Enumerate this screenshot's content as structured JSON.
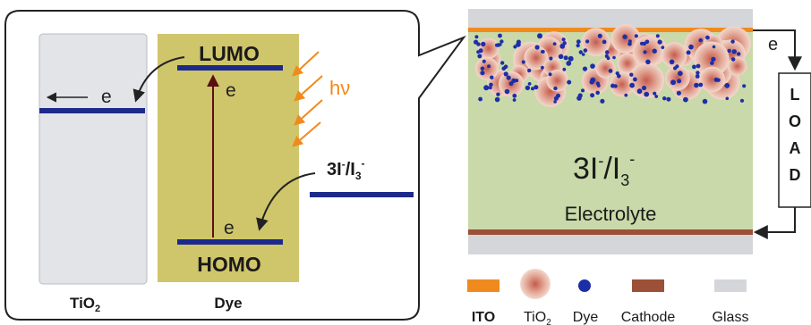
{
  "energy_diagram": {
    "lumo_label": "LUMO",
    "homo_label": "HOMO",
    "electron_label": "e",
    "light_label": "hν",
    "redox_main": "3I",
    "redox_sup1": "-",
    "redox_mid": "/I",
    "redox_sub": "3",
    "redox_sup2": "-",
    "tio2_main": "TiO",
    "tio2_sub": "2",
    "dye_label": "Dye"
  },
  "cell": {
    "redox_main": "3I",
    "redox_sup1": "-",
    "redox_mid": "/I",
    "redox_sub": "3",
    "redox_sup2": "-",
    "electrolyte_label": "Electrolyte",
    "electron_label": "e",
    "load_letters": [
      "L",
      "O",
      "A",
      "D"
    ]
  },
  "legend": {
    "ito": "ITO",
    "tio2_main": "TiO",
    "tio2_sub": "2",
    "dye": "Dye",
    "cathode": "Cathode",
    "glass": "Glass"
  },
  "colors": {
    "tio2_panel": "#e3e4e8",
    "dye_panel": "#cfc56b",
    "level_line": "#1c2a8c",
    "light_arrows": "#f08a1c",
    "electrolyte": "#c9d9a9",
    "glass": "#d5d6da",
    "ito": "#f18a1e",
    "cathode": "#9c5038",
    "dye_dot": "#1c2fa8",
    "tio2_particle": "#d98a78",
    "dark_arrow": "#5a0f14"
  }
}
